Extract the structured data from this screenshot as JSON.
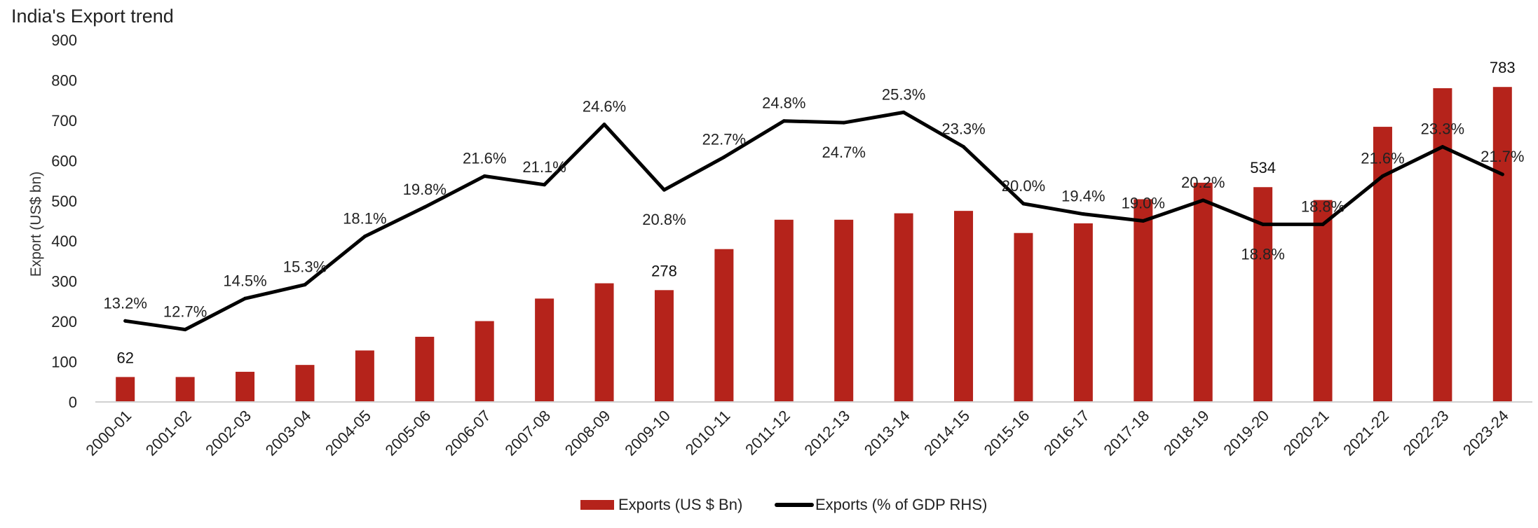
{
  "chart_data": {
    "type": "bar",
    "title": "India's Export trend",
    "ylabel": "Export (US$ bn)",
    "ylim": [
      0,
      900
    ],
    "yticks": [
      0,
      100,
      200,
      300,
      400,
      500,
      600,
      700,
      800,
      900
    ],
    "grid": false,
    "legend_position": "bottom",
    "categories": [
      "2000-01",
      "2001-02",
      "2002-03",
      "2003-04",
      "2004-05",
      "2005-06",
      "2006-07",
      "2007-08",
      "2008-09",
      "2009-10",
      "2010-11",
      "2011-12",
      "2012-13",
      "2013-14",
      "2014-15",
      "2015-16",
      "2016-17",
      "2017-18",
      "2018-19",
      "2019-20",
      "2020-21",
      "2021-22",
      "2022-23",
      "2023-24"
    ],
    "series": [
      {
        "name": "Exports (US $ Bn)",
        "type": "bar",
        "color": "#b5231b",
        "values": [
          62,
          62,
          75,
          92,
          128,
          162,
          201,
          257,
          295,
          278,
          380,
          453,
          453,
          469,
          475,
          420,
          444,
          504,
          545,
          534,
          502,
          684,
          780,
          783
        ],
        "data_labels": [
          {
            "index": 0,
            "text": "62"
          },
          {
            "index": 9,
            "text": "278"
          },
          {
            "index": 19,
            "text": "534"
          },
          {
            "index": 23,
            "text": "783"
          }
        ]
      },
      {
        "name": "Exports (% of GDP RHS)",
        "type": "line",
        "color": "#000000",
        "values": [
          13.2,
          12.7,
          14.5,
          15.3,
          18.1,
          19.8,
          21.6,
          21.1,
          24.6,
          20.8,
          22.7,
          24.8,
          24.7,
          25.3,
          23.3,
          20.0,
          19.4,
          19.0,
          20.2,
          18.8,
          18.8,
          21.6,
          23.3,
          21.7
        ],
        "labels": [
          "13.2%",
          "12.7%",
          "14.5%",
          "15.3%",
          "18.1%",
          "19.8%",
          "21.6%",
          "21.1%",
          "24.6%",
          "20.8%",
          "22.7%",
          "24.8%",
          "24.7%",
          "25.3%",
          "23.3%",
          "20.0%",
          "19.4%",
          "19.0%",
          "20.2%",
          "18.8%",
          "18.8%",
          "21.6%",
          "23.3%",
          "21.7%"
        ]
      }
    ]
  }
}
